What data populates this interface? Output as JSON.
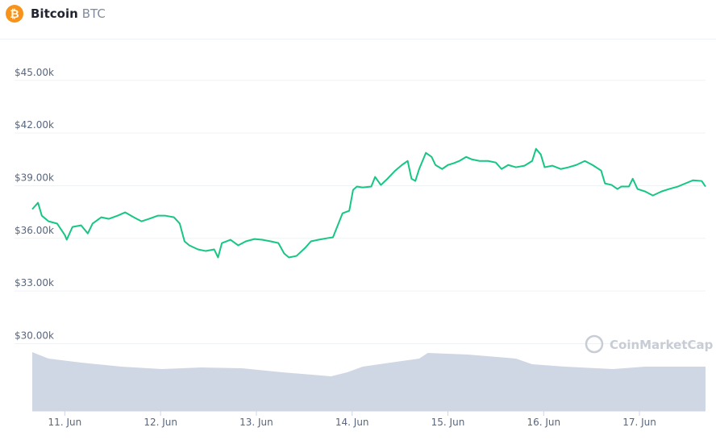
{
  "chart_data": {
    "type": "line",
    "icon": "₿",
    "title": "Bitcoin",
    "subtitle": "BTC",
    "watermark": "CoinMarketCap",
    "grid": true,
    "xlim": [
      10.66,
      17.69
    ],
    "xticks": [
      {
        "value": 11,
        "label": "11. Jun"
      },
      {
        "value": 12,
        "label": "12. Jun"
      },
      {
        "value": 13,
        "label": "13. Jun"
      },
      {
        "value": 14,
        "label": "14. Jun"
      },
      {
        "value": 15,
        "label": "15. Jun"
      },
      {
        "value": 16,
        "label": "16. Jun"
      },
      {
        "value": 17,
        "label": "17. Jun"
      }
    ],
    "ylim": [
      28000,
      46000
    ],
    "yticks": [
      {
        "value": 30000,
        "label": "$30.00k"
      },
      {
        "value": 33000,
        "label": "$33.00k"
      },
      {
        "value": 36000,
        "label": "$36.00k"
      },
      {
        "value": 39000,
        "label": "$39.00k"
      },
      {
        "value": 42000,
        "label": "$42.00k"
      },
      {
        "value": 45000,
        "label": "$45.00k"
      }
    ],
    "x": [
      10.66,
      10.72,
      10.76,
      10.83,
      10.92,
      11.0,
      11.02,
      11.08,
      11.17,
      11.24,
      11.29,
      11.38,
      11.46,
      11.55,
      11.63,
      11.72,
      11.8,
      11.88,
      11.97,
      12.05,
      12.14,
      12.2,
      12.25,
      12.3,
      12.39,
      12.47,
      12.56,
      12.6,
      12.64,
      12.73,
      12.81,
      12.89,
      12.98,
      13.06,
      13.15,
      13.23,
      13.29,
      13.34,
      13.42,
      13.51,
      13.57,
      13.65,
      13.74,
      13.8,
      13.85,
      13.9,
      13.97,
      14.01,
      14.05,
      14.11,
      14.2,
      14.24,
      14.3,
      14.37,
      14.45,
      14.52,
      14.58,
      14.62,
      14.66,
      14.7,
      14.77,
      14.83,
      14.87,
      14.94,
      15.0,
      15.06,
      15.12,
      15.19,
      15.25,
      15.33,
      15.42,
      15.5,
      15.56,
      15.63,
      15.71,
      15.8,
      15.88,
      15.92,
      15.97,
      16.01,
      16.09,
      16.18,
      16.26,
      16.34,
      16.43,
      16.51,
      16.6,
      16.64,
      16.71,
      16.77,
      16.81,
      16.89,
      16.93,
      16.98,
      17.06,
      17.14,
      17.23,
      17.31,
      17.4,
      17.48,
      17.56,
      17.65,
      17.69
    ],
    "series": [
      {
        "color": "#16c784",
        "values": [
          37660,
          38030,
          37290,
          36970,
          36840,
          36190,
          35920,
          36650,
          36740,
          36280,
          36840,
          37200,
          37110,
          37290,
          37480,
          37200,
          36970,
          37110,
          37290,
          37290,
          37200,
          36840,
          35830,
          35600,
          35370,
          35280,
          35370,
          34910,
          35730,
          35920,
          35600,
          35830,
          35960,
          35920,
          35830,
          35730,
          35140,
          34910,
          35000,
          35460,
          35830,
          35920,
          36010,
          36060,
          36740,
          37430,
          37570,
          38760,
          38950,
          38900,
          38950,
          39500,
          39040,
          39400,
          39860,
          40180,
          40410,
          39400,
          39270,
          39950,
          40870,
          40640,
          40180,
          39950,
          40180,
          40280,
          40410,
          40640,
          40500,
          40410,
          40410,
          40320,
          39950,
          40180,
          40050,
          40140,
          40410,
          41100,
          40780,
          40050,
          40140,
          39950,
          40050,
          40180,
          40410,
          40180,
          39860,
          39130,
          39040,
          38810,
          38950,
          38950,
          39400,
          38810,
          38670,
          38440,
          38670,
          38810,
          38950,
          39130,
          39310,
          39270,
          38950
        ]
      }
    ],
    "volume": {
      "color": "#cfd6e4",
      "vlim": [
        0,
        80
      ],
      "x": [
        10.66,
        10.83,
        11.17,
        11.59,
        12.01,
        12.43,
        12.85,
        13.27,
        13.78,
        13.95,
        14.11,
        14.7,
        14.79,
        15.21,
        15.71,
        15.88,
        16.22,
        16.72,
        17.06,
        17.69
      ],
      "values": [
        73,
        65,
        60,
        55,
        52,
        54,
        53,
        48,
        43,
        48,
        55,
        65,
        72,
        70,
        65,
        58,
        55,
        52,
        55,
        55
      ]
    }
  }
}
